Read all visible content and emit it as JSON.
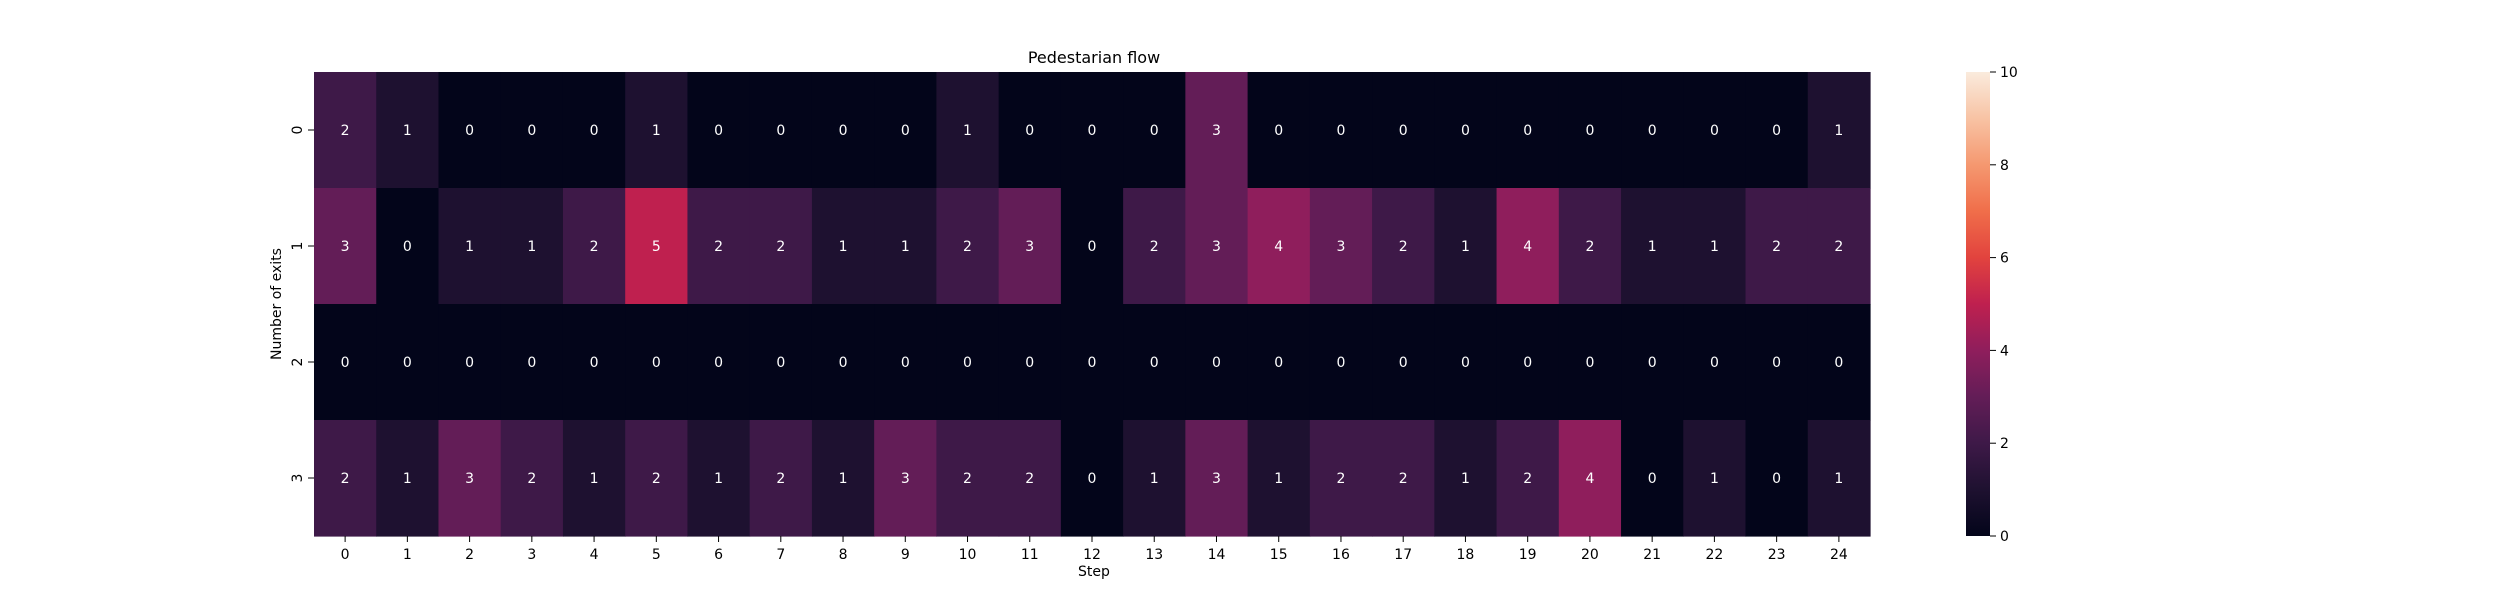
{
  "chart_data": {
    "type": "heatmap",
    "title": "Pedestarian flow",
    "xlabel": "Step",
    "ylabel": "Number of exits",
    "x_categories": [
      "0",
      "1",
      "2",
      "3",
      "4",
      "5",
      "6",
      "7",
      "8",
      "9",
      "10",
      "11",
      "12",
      "13",
      "14",
      "15",
      "16",
      "17",
      "18",
      "19",
      "20",
      "21",
      "22",
      "23",
      "24"
    ],
    "y_categories": [
      "0",
      "1",
      "2",
      "3"
    ],
    "values": [
      [
        2,
        1,
        0,
        0,
        0,
        1,
        0,
        0,
        0,
        0,
        1,
        0,
        0,
        0,
        3,
        0,
        0,
        0,
        0,
        0,
        0,
        0,
        0,
        0,
        1
      ],
      [
        3,
        0,
        1,
        1,
        2,
        5,
        2,
        2,
        1,
        1,
        2,
        3,
        0,
        2,
        3,
        4,
        3,
        2,
        1,
        4,
        2,
        1,
        1,
        2,
        2
      ],
      [
        0,
        0,
        0,
        0,
        0,
        0,
        0,
        0,
        0,
        0,
        0,
        0,
        0,
        0,
        0,
        0,
        0,
        0,
        0,
        0,
        0,
        0,
        0,
        0,
        0
      ],
      [
        2,
        1,
        3,
        2,
        1,
        2,
        1,
        2,
        1,
        3,
        2,
        2,
        0,
        1,
        3,
        1,
        2,
        2,
        1,
        2,
        4,
        0,
        1,
        0,
        1
      ]
    ],
    "colorbar": {
      "range": [
        0,
        10
      ],
      "ticks": [
        "0",
        "2",
        "4",
        "6",
        "8",
        "10"
      ],
      "colormap": "rocket"
    },
    "annotations": true,
    "grid": false,
    "legend": "colorbar-right"
  }
}
